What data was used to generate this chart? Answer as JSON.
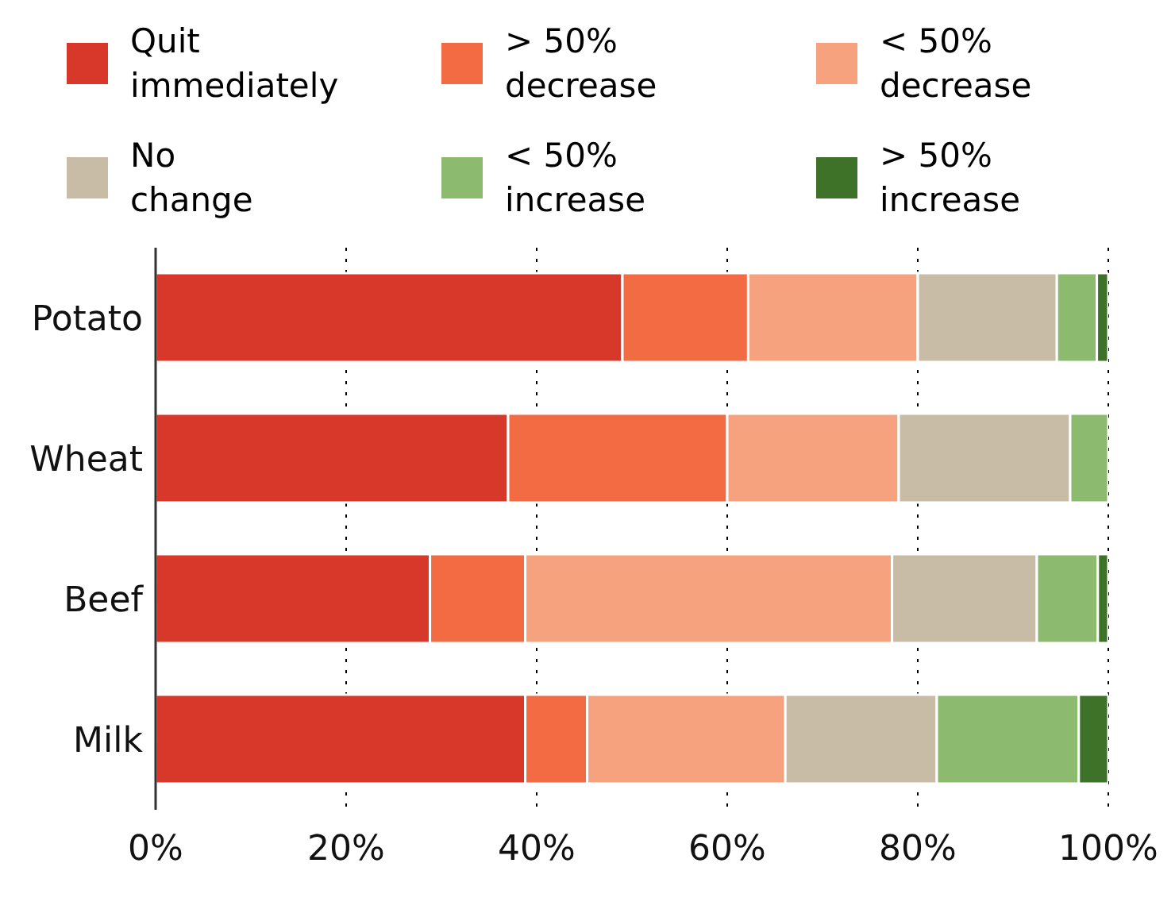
{
  "chart_data": {
    "type": "bar",
    "orientation": "horizontal",
    "stacked": true,
    "categories": [
      "Potato",
      "Wheat",
      "Beef",
      "Milk"
    ],
    "series": [
      {
        "name": "Quit immediately",
        "color": "#d83829",
        "values": [
          49,
          37,
          28.8,
          38.8
        ]
      },
      {
        "name": "> 50% decrease",
        "color": "#f26b43",
        "values": [
          13.2,
          23,
          10,
          6.5
        ]
      },
      {
        "name": "< 50% decrease",
        "color": "#f6a27f",
        "values": [
          17.8,
          18,
          38.5,
          20.8
        ]
      },
      {
        "name": "No change",
        "color": "#c8bca6",
        "values": [
          14.6,
          18,
          15.2,
          15.9
        ]
      },
      {
        "name": "< 50% increase",
        "color": "#8cba6e",
        "values": [
          4.2,
          4,
          6.4,
          14.9
        ]
      },
      {
        "name": "> 50% increase",
        "color": "#3e7228",
        "values": [
          1.2,
          0,
          1.1,
          3.1
        ]
      }
    ],
    "xlim": [
      0,
      100
    ],
    "xticks": [
      {
        "value": 0,
        "label": "0%"
      },
      {
        "value": 20,
        "label": "20%"
      },
      {
        "value": 40,
        "label": "40%"
      },
      {
        "value": 60,
        "label": "60%"
      },
      {
        "value": 80,
        "label": "80%"
      },
      {
        "value": 100,
        "label": "100%"
      }
    ],
    "grid": "x",
    "legend": "top"
  }
}
